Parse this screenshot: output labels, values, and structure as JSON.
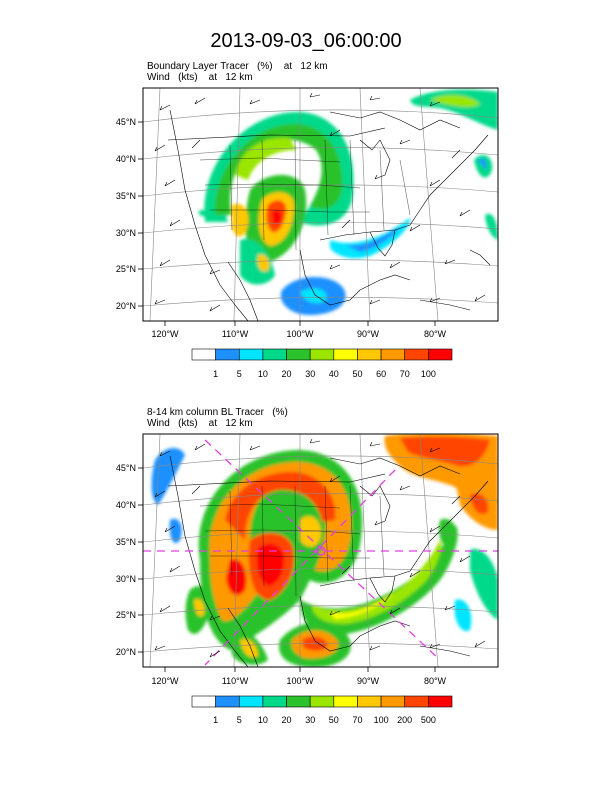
{
  "title": "2013-09-03_06:00:00",
  "panels": [
    {
      "id": "top",
      "subtitle_line1": "Boundary Layer Tracer   (%)    at   12 km",
      "subtitle_line2": "Wind   (kts)    at   12 km",
      "lat_labels": [
        "45°N",
        "40°N",
        "35°N",
        "30°N",
        "25°N",
        "20°N"
      ],
      "lon_labels": [
        "120°W",
        "110°W",
        "100°W",
        "90°W",
        "80°W"
      ],
      "colorbar_labels": [
        "1",
        "5",
        "10",
        "20",
        "30",
        "40",
        "50",
        "60",
        "70",
        "100"
      ]
    },
    {
      "id": "bottom",
      "subtitle_line1": "8-14 km column BL Tracer   (%)",
      "subtitle_line2": "Wind   (kts)    at   12 km",
      "lat_labels": [
        "45°N",
        "40°N",
        "35°N",
        "30°N",
        "25°N",
        "20°N"
      ],
      "lon_labels": [
        "120°W",
        "110°W",
        "100°W",
        "90°W",
        "80°W"
      ],
      "colorbar_labels": [
        "1",
        "5",
        "10",
        "20",
        "30",
        "50",
        "70",
        "100",
        "200",
        "500"
      ]
    }
  ],
  "colorbar_colors": [
    "#ffffff",
    "#1e90ff",
    "#00e5ff",
    "#00d98a",
    "#2bc22b",
    "#9ae600",
    "#ffff00",
    "#ffc800",
    "#ff9900",
    "#ff4400",
    "#ff0000"
  ],
  "reference_line_color": "#e040e0",
  "icons": [
    "wind-barb-icon"
  ]
}
